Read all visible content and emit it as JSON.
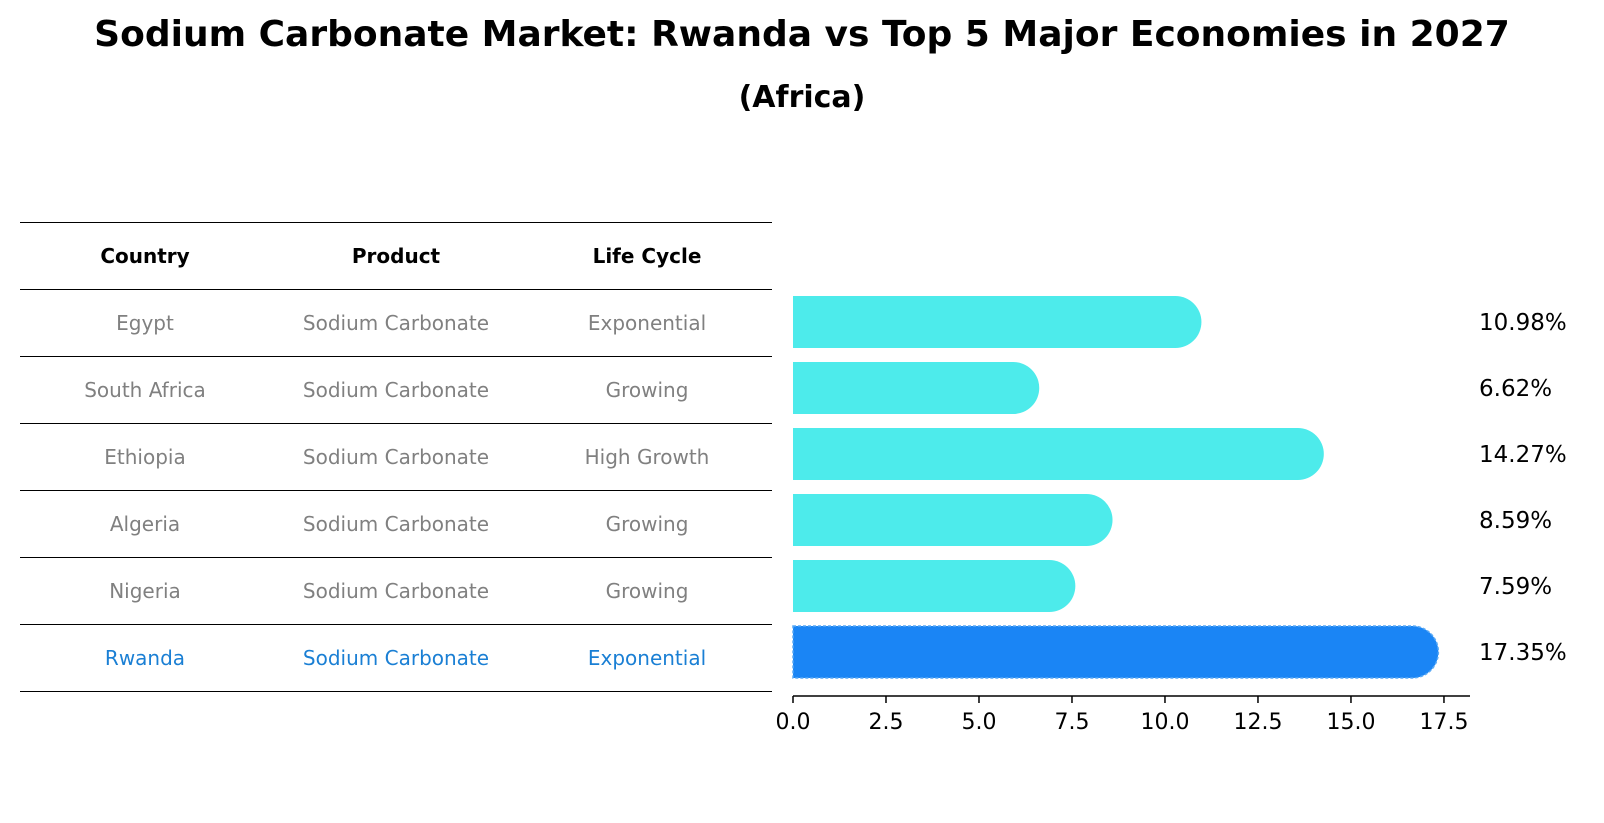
{
  "title": "Sodium Carbonate Market: Rwanda vs Top 5 Major Economies in 2027",
  "subtitle": "(Africa)",
  "table": {
    "headers": [
      "Country",
      "Product",
      "Life Cycle"
    ],
    "rows": [
      {
        "country": "Egypt",
        "product": "Sodium Carbonate",
        "life_cycle": "Exponential"
      },
      {
        "country": "South Africa",
        "product": "Sodium Carbonate",
        "life_cycle": "Growing"
      },
      {
        "country": "Ethiopia",
        "product": "Sodium Carbonate",
        "life_cycle": "High Growth"
      },
      {
        "country": "Algeria",
        "product": "Sodium Carbonate",
        "life_cycle": "Growing"
      },
      {
        "country": "Nigeria",
        "product": "Sodium Carbonate",
        "life_cycle": "Growing"
      },
      {
        "country": "Rwanda",
        "product": "Sodium Carbonate",
        "life_cycle": "Exponential"
      }
    ]
  },
  "chart_data": {
    "type": "bar",
    "orientation": "horizontal",
    "categories": [
      "Egypt",
      "South Africa",
      "Ethiopia",
      "Algeria",
      "Nigeria",
      "Rwanda"
    ],
    "values": [
      10.98,
      6.62,
      14.27,
      8.59,
      7.59,
      17.35
    ],
    "value_labels": [
      "10.98%",
      "6.62%",
      "14.27%",
      "8.59%",
      "7.59%",
      "17.35%"
    ],
    "highlight": "Rwanda",
    "xlim": [
      0,
      18.2
    ],
    "xticks": [
      0.0,
      2.5,
      5.0,
      7.5,
      10.0,
      12.5,
      15.0,
      17.5
    ],
    "xtick_labels": [
      "0.0",
      "2.5",
      "5.0",
      "7.5",
      "10.0",
      "12.5",
      "15.0",
      "17.5"
    ],
    "colors": {
      "default": "#4DEBEB",
      "highlight": "#1A85F5"
    }
  },
  "colors": {
    "table_text": "#808080",
    "highlight_text": "#1A7FD4"
  }
}
